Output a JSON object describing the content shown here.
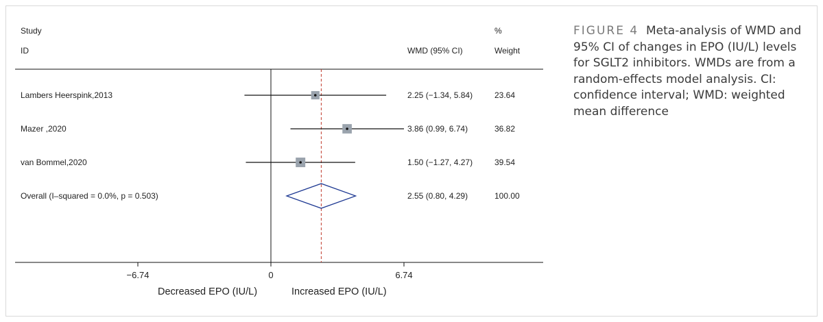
{
  "chart_data": {
    "type": "forest",
    "headers": {
      "study_line1": "Study",
      "study_line2": "ID",
      "effect": "WMD (95% CI)",
      "weight_line1": "%",
      "weight_line2": "Weight"
    },
    "studies": [
      {
        "label": "Lambers Heerspink,2013",
        "estimate": 2.25,
        "ci": [
          -1.34,
          5.84
        ],
        "ci_text": "2.25 (−1.34, 5.84)",
        "weight": "23.64"
      },
      {
        "label": "Mazer ,2020",
        "estimate": 3.86,
        "ci": [
          0.99,
          6.74
        ],
        "ci_text": "3.86 (0.99, 6.74)",
        "weight": "36.82"
      },
      {
        "label": "van Bommel,2020",
        "estimate": 1.5,
        "ci": [
          -1.27,
          4.27
        ],
        "ci_text": "1.50 (−1.27, 4.27)",
        "weight": "39.54"
      }
    ],
    "overall": {
      "label": "Overall  (I–squared = 0.0%, p = 0.503)",
      "estimate": 2.55,
      "ci": [
        0.8,
        4.29
      ],
      "ci_text": "2.55 (0.80, 4.29)",
      "weight": "100.00"
    },
    "x_ticks": [
      {
        "value": -6.74,
        "label": "−6.74"
      },
      {
        "value": 0,
        "label": "0"
      },
      {
        "value": 6.74,
        "label": "6.74"
      }
    ],
    "xlabel_left": "Decreased EPO (IU/L)",
    "xlabel_right": "Increased EPO (IU/L)",
    "colors": {
      "line": "#111111",
      "diamond": "#1f3a93",
      "overall_line": "#c0392b",
      "box": "#9aa3ad"
    }
  },
  "caption": {
    "label": "FIGURE 4",
    "text": "Meta-analysis of WMD and 95% CI of changes in EPO (IU/L) levels for SGLT2 inhibitors. WMDs are from a random-effects model analysis. CI: confidence interval; WMD: weighted mean difference"
  }
}
